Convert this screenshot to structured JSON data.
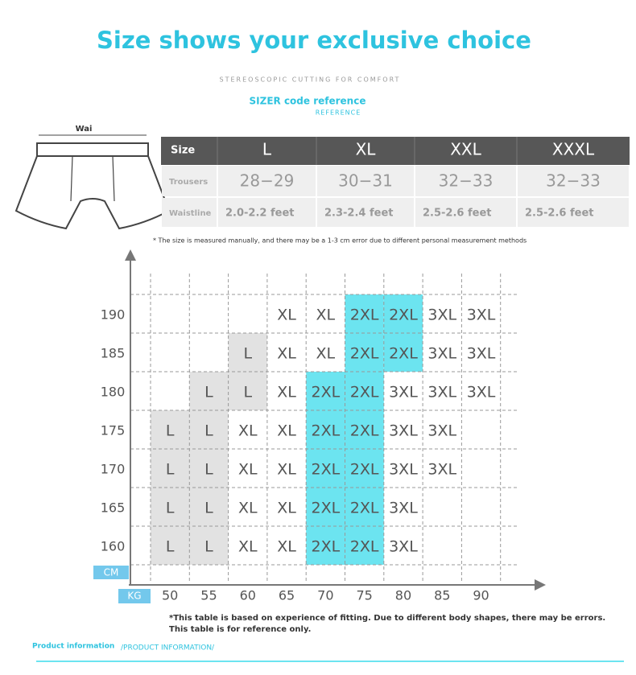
{
  "header": {
    "title": "Size shows your exclusive choice",
    "subtitle": "STEREOSCOPIC CUTTING FOR COMFORT"
  },
  "size_reference": {
    "title": "SIZER code reference",
    "subtitle": "REFERENCE"
  },
  "diagram_label": "Wai",
  "size_table": {
    "header": [
      "Size",
      "L",
      "XL",
      "XXL",
      "XXXL"
    ],
    "rows": [
      [
        "Trousers",
        "28−29",
        "30−31",
        "32−33",
        "32−33"
      ],
      [
        "Waistline",
        "2.0-2.2 feet",
        "2.3-2.4 feet",
        "2.5-2.6 feet",
        "2.5-2.6 feet"
      ]
    ]
  },
  "table_note": "* The size is measured manually, and there may be a 1-3 cm error due to different personal measurement methods",
  "size_chart": {
    "y_label": "CM",
    "x_label": "KG",
    "heights": [
      190,
      185,
      180,
      175,
      170,
      165,
      160
    ],
    "weights": [
      50,
      55,
      60,
      65,
      70,
      75,
      80,
      85,
      90
    ],
    "cells": [
      [
        null,
        null,
        null,
        "XL",
        "XL",
        "2XL",
        "2XL",
        "3XL",
        "3XL"
      ],
      [
        null,
        null,
        "L",
        "XL",
        "XL",
        "2XL",
        "2XL",
        "3XL",
        "3XL"
      ],
      [
        null,
        "L",
        "L",
        "XL",
        "2XL",
        "2XL",
        "3XL",
        "3XL",
        "3XL"
      ],
      [
        "L",
        "L",
        "XL",
        "XL",
        "2XL",
        "2XL",
        "3XL",
        "3XL",
        null
      ],
      [
        "L",
        "L",
        "XL",
        "XL",
        "2XL",
        "2XL",
        "3XL",
        "3XL",
        null
      ],
      [
        "L",
        "L",
        "XL",
        "XL",
        "2XL",
        "2XL",
        "3XL",
        null,
        null
      ],
      [
        "L",
        "L",
        "XL",
        "XL",
        "2XL",
        "2XL",
        "3XL",
        null,
        null
      ]
    ],
    "highlight": {
      "L": "#e2e2e2",
      "2XL": "#6ce4f0"
    }
  },
  "notes": [
    "*This table is based on experience of fitting. Due to different body shapes, there may be errors.",
    "This table is for reference only."
  ],
  "footer": {
    "title": "Product information",
    "subtitle": "/PRODUCT INFORMATION/"
  }
}
